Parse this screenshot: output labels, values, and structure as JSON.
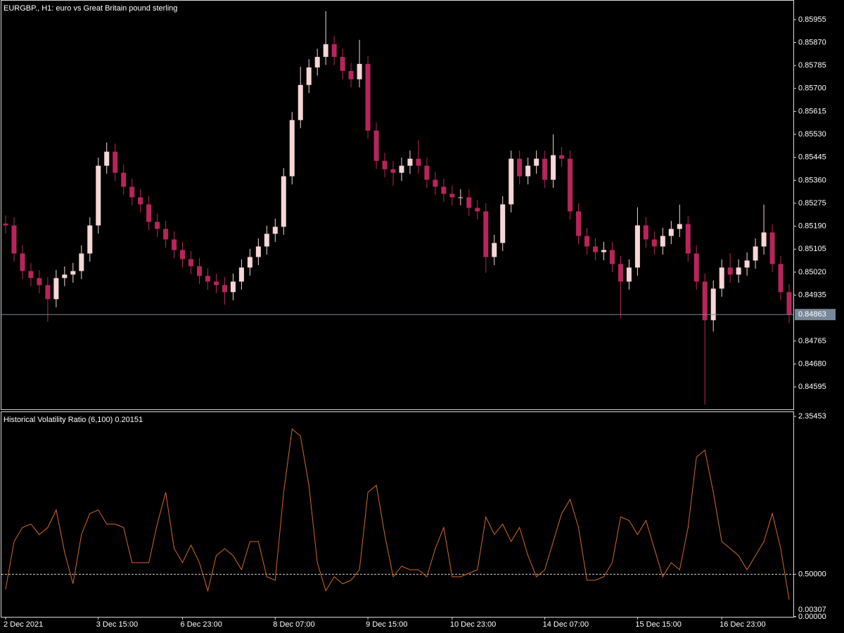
{
  "chart_data": [
    {
      "type": "candlestick",
      "title": "EURGBP., H1:  euro vs Great Britain pound sterling",
      "open": [
        0.852,
        0.85193,
        0.85089,
        0.85024,
        0.84998,
        0.84972,
        0.8492,
        0.84998,
        0.85011,
        0.85024,
        0.85089,
        0.85193,
        0.85414,
        0.85466,
        0.85388,
        0.85336,
        0.85297,
        0.85271,
        0.85206,
        0.8518,
        0.85141,
        0.85102,
        0.85068,
        0.85042,
        0.85006,
        0.84985,
        0.84972,
        0.84946,
        0.84985,
        0.85037,
        0.85076,
        0.85115,
        0.85162,
        0.85188,
        0.85375,
        0.85583,
        0.85713,
        0.85778,
        0.85817,
        0.85864,
        0.85817,
        0.85765,
        0.85734,
        0.85791,
        0.85544,
        0.85432,
        0.85401,
        0.85388,
        0.85414,
        0.8544,
        0.85414,
        0.85362,
        0.85336,
        0.8531,
        0.85297,
        0.85297,
        0.85258,
        0.85245,
        0.85076,
        0.85128,
        0.85271,
        0.8544,
        0.85375,
        0.85414,
        0.8544,
        0.85362,
        0.85453,
        0.8544,
        0.85245,
        0.85154,
        0.85115,
        0.85094,
        0.85102,
        0.8505,
        0.84985,
        0.85037,
        0.85193,
        0.85141,
        0.85115,
        0.85154,
        0.8518,
        0.85198,
        0.85089,
        0.84985,
        0.84842,
        0.84959,
        0.85037,
        0.85011,
        0.85037,
        0.85063,
        0.85115,
        0.85167,
        0.8505,
        0.84946
      ],
      "high": [
        0.8523,
        0.85223,
        0.85119,
        0.85054,
        0.85028,
        0.85002,
        0.85028,
        0.85041,
        0.85054,
        0.85119,
        0.85223,
        0.85444,
        0.855,
        0.85496,
        0.85418,
        0.85366,
        0.85327,
        0.85301,
        0.85236,
        0.8521,
        0.85171,
        0.85132,
        0.85098,
        0.85072,
        0.85036,
        0.85015,
        0.85002,
        0.85015,
        0.85067,
        0.85106,
        0.85145,
        0.85192,
        0.85218,
        0.85405,
        0.85613,
        0.8578,
        0.85808,
        0.85847,
        0.85986,
        0.85894,
        0.85847,
        0.85795,
        0.8588,
        0.85821,
        0.85574,
        0.85462,
        0.85431,
        0.85444,
        0.8547,
        0.8551,
        0.85444,
        0.85392,
        0.85366,
        0.8534,
        0.85327,
        0.85327,
        0.85288,
        0.85275,
        0.85158,
        0.85301,
        0.8547,
        0.8547,
        0.85444,
        0.8547,
        0.8547,
        0.8553,
        0.85483,
        0.8547,
        0.85275,
        0.85184,
        0.85145,
        0.85132,
        0.85132,
        0.8508,
        0.85067,
        0.8526,
        0.85223,
        0.85171,
        0.85184,
        0.8521,
        0.8527,
        0.85228,
        0.85119,
        0.85015,
        0.84989,
        0.85067,
        0.8509,
        0.85067,
        0.85093,
        0.85145,
        0.8527,
        0.85197,
        0.8508,
        0.84976
      ],
      "low": [
        0.85163,
        0.85059,
        0.84994,
        0.84968,
        0.84942,
        0.84837,
        0.8489,
        0.84968,
        0.84981,
        0.84994,
        0.85059,
        0.85163,
        0.85384,
        0.85358,
        0.85306,
        0.85267,
        0.85241,
        0.85176,
        0.8515,
        0.85111,
        0.85072,
        0.85038,
        0.85012,
        0.84976,
        0.84955,
        0.84942,
        0.849,
        0.84916,
        0.84955,
        0.85007,
        0.85046,
        0.85085,
        0.85132,
        0.85158,
        0.85345,
        0.85553,
        0.85683,
        0.85748,
        0.85787,
        0.85787,
        0.85735,
        0.85704,
        0.85704,
        0.85514,
        0.85402,
        0.85371,
        0.8534,
        0.85358,
        0.85384,
        0.85384,
        0.85332,
        0.85306,
        0.8528,
        0.85267,
        0.85267,
        0.85228,
        0.85215,
        0.85018,
        0.85046,
        0.85098,
        0.85241,
        0.85345,
        0.85345,
        0.85384,
        0.85332,
        0.85332,
        0.8541,
        0.85215,
        0.85124,
        0.85085,
        0.85064,
        0.85064,
        0.8502,
        0.8485,
        0.84955,
        0.85007,
        0.85111,
        0.85085,
        0.85085,
        0.85124,
        0.8515,
        0.85059,
        0.84955,
        0.8453,
        0.848,
        0.84929,
        0.84981,
        0.84981,
        0.85007,
        0.85033,
        0.85085,
        0.8502,
        0.84916,
        0.84833
      ],
      "close": [
        0.85193,
        0.85089,
        0.85024,
        0.84998,
        0.84972,
        0.8492,
        0.84998,
        0.85011,
        0.85024,
        0.85089,
        0.85193,
        0.85414,
        0.85466,
        0.85388,
        0.85336,
        0.85297,
        0.85271,
        0.85206,
        0.8518,
        0.85141,
        0.85102,
        0.85068,
        0.85042,
        0.85006,
        0.84985,
        0.84972,
        0.84946,
        0.84985,
        0.85037,
        0.85076,
        0.85115,
        0.85162,
        0.85188,
        0.85375,
        0.85583,
        0.85713,
        0.85778,
        0.85817,
        0.85864,
        0.85817,
        0.85765,
        0.85734,
        0.85791,
        0.85544,
        0.85432,
        0.85401,
        0.85388,
        0.85414,
        0.8544,
        0.85414,
        0.85362,
        0.85336,
        0.8531,
        0.85297,
        0.85297,
        0.85258,
        0.85245,
        0.85076,
        0.85128,
        0.85271,
        0.8544,
        0.85375,
        0.85414,
        0.8544,
        0.85362,
        0.85453,
        0.8544,
        0.85245,
        0.85154,
        0.85115,
        0.85094,
        0.85102,
        0.8505,
        0.84985,
        0.85037,
        0.85193,
        0.85141,
        0.85115,
        0.85154,
        0.8518,
        0.85198,
        0.85089,
        0.84985,
        0.84842,
        0.84959,
        0.85037,
        0.85011,
        0.85037,
        0.85063,
        0.85115,
        0.85167,
        0.8505,
        0.84946,
        0.84863
      ],
      "up_color": "#f6d6d6",
      "down_color": "#b8245c",
      "last_price": 0.84863,
      "last_price_color": "#778899",
      "ylim": [
        0.84512,
        0.86025
      ],
      "yticks": [
        0.85955,
        {
          "value": 0.8587,
          "label": "0.85870"
        },
        0.85785,
        {
          "value": 0.857,
          "label": "0.85700"
        },
        0.85615,
        {
          "value": 0.8553,
          "label": "0.85530"
        },
        0.85445,
        {
          "value": 0.8536,
          "label": "0.85360"
        },
        0.85275,
        {
          "value": 0.8519,
          "label": "0.85190"
        },
        0.85105,
        {
          "value": 0.8502,
          "label": "0.85020"
        },
        0.84935,
        0.84765,
        {
          "value": 0.8468,
          "label": "0.84680"
        },
        0.84595
      ]
    },
    {
      "type": "line",
      "title": "Historical Volatility Ratio (6,100) 0.20151",
      "values": [
        0.322,
        0.884,
        1.049,
        1.09,
        0.967,
        1.049,
        1.256,
        0.76,
        0.388,
        0.967,
        1.214,
        1.256,
        1.09,
        1.09,
        1.049,
        0.636,
        0.636,
        0.636,
        1.09,
        1.462,
        0.801,
        0.636,
        0.843,
        0.636,
        0.306,
        0.719,
        0.801,
        0.719,
        0.553,
        0.884,
        0.884,
        0.471,
        0.43,
        1.462,
        2.206,
        2.123,
        1.545,
        0.636,
        0.306,
        0.471,
        0.388,
        0.43,
        0.553,
        1.462,
        1.545,
        0.967,
        0.471,
        0.595,
        0.553,
        0.553,
        0.471,
        0.801,
        1.049,
        0.471,
        0.471,
        0.512,
        0.553,
        1.173,
        0.967,
        1.09,
        0.884,
        1.049,
        0.719,
        0.471,
        0.553,
        0.884,
        1.214,
        1.38,
        1.049,
        0.43,
        0.43,
        0.471,
        0.636,
        1.173,
        1.132,
        0.967,
        1.132,
        0.801,
        0.471,
        0.636,
        0.553,
        1.049,
        1.875,
        1.958,
        1.462,
        0.884,
        0.801,
        0.719,
        0.553,
        0.719,
        0.884,
        1.214,
        0.801,
        0.20151
      ],
      "color": "#d2691e",
      "level": 0.5,
      "level_color": "#c8c8c8",
      "ylim": [
        0,
        2.4124
      ],
      "yticks": [
        {
          "value": 2.35453,
          "label": "2.35453"
        },
        {
          "value": 0.5,
          "label": "0.50000"
        },
        {
          "value": 0.00307,
          "label": "0.00307"
        },
        {
          "value": 0,
          "label": "0.00000"
        }
      ],
      "xticks": [
        {
          "value": 0,
          "label": "2 Dec 2021"
        },
        {
          "value": 11,
          "label": "3 Dec 15:00"
        },
        {
          "value": 21,
          "label": "6 Dec 23:00"
        },
        {
          "value": 32,
          "label": "8 Dec 07:00"
        },
        {
          "value": 43,
          "label": "9 Dec 15:00"
        },
        {
          "value": 53,
          "label": "10 Dec 23:00"
        },
        {
          "value": 64,
          "label": "14 Dec 07:00"
        },
        {
          "value": 75,
          "label": "15 Dec 15:00"
        },
        {
          "value": 85,
          "label": "16 Dec 23:00"
        }
      ]
    }
  ]
}
